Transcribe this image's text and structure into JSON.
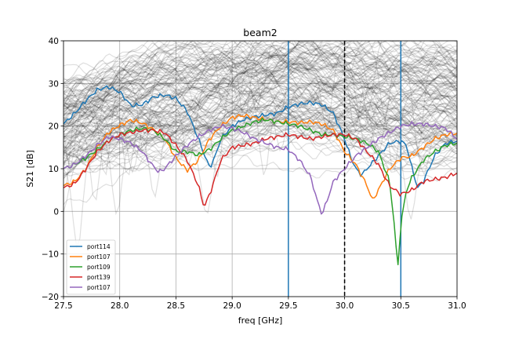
{
  "chart_data": {
    "type": "line",
    "title": "beam2",
    "xlabel": "freq [GHz]",
    "ylabel": "S21 [dB]",
    "xlim": [
      27.5,
      31.0
    ],
    "ylim": [
      -20,
      40
    ],
    "xticks": [
      "27.5",
      "28.0",
      "28.5",
      "29.0",
      "29.5",
      "30.0",
      "30.5",
      "31.0"
    ],
    "yticks": [
      "−20",
      "−10",
      "0",
      "10",
      "20",
      "30",
      "40"
    ],
    "grid": true,
    "legend_position": "lower-left",
    "background_traces": {
      "description_count": 200,
      "color": "#000000",
      "envelope_upper": [
        [
          27.5,
          29
        ],
        [
          28.0,
          34
        ],
        [
          28.5,
          37
        ],
        [
          29.0,
          39
        ],
        [
          29.5,
          40
        ],
        [
          30.0,
          39
        ],
        [
          30.5,
          38
        ],
        [
          31.0,
          37
        ]
      ],
      "envelope_lower": [
        [
          27.5,
          1
        ],
        [
          28.0,
          5
        ],
        [
          28.5,
          3
        ],
        [
          29.0,
          6
        ],
        [
          29.5,
          9
        ],
        [
          30.0,
          5
        ],
        [
          30.5,
          2
        ],
        [
          31.0,
          2
        ]
      ]
    },
    "vertical_lines": [
      {
        "x": 29.5,
        "color": "#1f77b4",
        "style": "solid"
      },
      {
        "x": 30.0,
        "color": "#000000",
        "style": "dashed"
      },
      {
        "x": 30.5,
        "color": "#1f77b4",
        "style": "solid"
      }
    ],
    "series": [
      {
        "name": "port114",
        "color": "#1f77b4",
        "points": [
          [
            27.5,
            20.5
          ],
          [
            27.6,
            23
          ],
          [
            27.7,
            26
          ],
          [
            27.8,
            28.5
          ],
          [
            27.9,
            29.2
          ],
          [
            28.0,
            28
          ],
          [
            28.1,
            24.8
          ],
          [
            28.2,
            25
          ],
          [
            28.3,
            26.8
          ],
          [
            28.4,
            27.3
          ],
          [
            28.5,
            26.5
          ],
          [
            28.6,
            23.5
          ],
          [
            28.7,
            17
          ],
          [
            28.75,
            13.5
          ],
          [
            28.8,
            10.2
          ],
          [
            28.85,
            13
          ],
          [
            28.9,
            17
          ],
          [
            29.0,
            20
          ],
          [
            29.1,
            21.5
          ],
          [
            29.2,
            22.2
          ],
          [
            29.3,
            22.6
          ],
          [
            29.4,
            23
          ],
          [
            29.5,
            24.5
          ],
          [
            29.6,
            25.2
          ],
          [
            29.7,
            25.5
          ],
          [
            29.8,
            25
          ],
          [
            29.9,
            23
          ],
          [
            30.0,
            17
          ],
          [
            30.05,
            13
          ],
          [
            30.1,
            10
          ],
          [
            30.15,
            8.5
          ],
          [
            30.2,
            10
          ],
          [
            30.3,
            13
          ],
          [
            30.4,
            16
          ],
          [
            30.5,
            16.5
          ],
          [
            30.55,
            15.5
          ],
          [
            30.6,
            10
          ],
          [
            30.65,
            5.5
          ],
          [
            30.7,
            7
          ],
          [
            30.8,
            13
          ],
          [
            30.9,
            16
          ],
          [
            31.0,
            16.5
          ]
        ]
      },
      {
        "name": "port107",
        "color": "#ff7f0e",
        "points": [
          [
            27.5,
            6
          ],
          [
            27.6,
            7
          ],
          [
            27.7,
            10
          ],
          [
            27.8,
            15
          ],
          [
            27.9,
            18.5
          ],
          [
            28.0,
            20.2
          ],
          [
            28.1,
            21.4
          ],
          [
            28.2,
            20.7
          ],
          [
            28.3,
            19.2
          ],
          [
            28.4,
            17
          ],
          [
            28.5,
            12.5
          ],
          [
            28.6,
            9.6
          ],
          [
            28.7,
            12
          ],
          [
            28.8,
            17
          ],
          [
            28.9,
            20
          ],
          [
            29.0,
            22
          ],
          [
            29.1,
            22.5
          ],
          [
            29.2,
            22
          ],
          [
            29.3,
            21.5
          ],
          [
            29.4,
            21
          ],
          [
            29.5,
            21
          ],
          [
            29.6,
            20.8
          ],
          [
            29.7,
            21
          ],
          [
            29.8,
            20.5
          ],
          [
            29.9,
            19
          ],
          [
            30.0,
            14
          ],
          [
            30.1,
            11
          ],
          [
            30.2,
            6
          ],
          [
            30.25,
            2.5
          ],
          [
            30.3,
            5
          ],
          [
            30.4,
            10
          ],
          [
            30.5,
            12.5
          ],
          [
            30.6,
            13
          ],
          [
            30.7,
            15
          ],
          [
            30.8,
            17
          ],
          [
            30.9,
            18
          ],
          [
            31.0,
            18.3
          ]
        ]
      },
      {
        "name": "port109",
        "color": "#2ca02c",
        "points": [
          [
            27.5,
            10
          ],
          [
            27.6,
            11
          ],
          [
            27.7,
            12.5
          ],
          [
            27.8,
            14.5
          ],
          [
            27.9,
            16.5
          ],
          [
            28.0,
            18
          ],
          [
            28.1,
            19
          ],
          [
            28.2,
            19.5
          ],
          [
            28.3,
            19
          ],
          [
            28.4,
            17
          ],
          [
            28.5,
            14
          ],
          [
            28.6,
            14
          ],
          [
            28.7,
            13.2
          ],
          [
            28.8,
            14.5
          ],
          [
            28.9,
            17
          ],
          [
            29.0,
            19
          ],
          [
            29.1,
            20
          ],
          [
            29.2,
            21
          ],
          [
            29.3,
            21.5
          ],
          [
            29.4,
            21
          ],
          [
            29.5,
            20.5
          ],
          [
            29.6,
            20
          ],
          [
            29.7,
            19
          ],
          [
            29.8,
            18
          ],
          [
            29.9,
            18
          ],
          [
            30.0,
            17.5
          ],
          [
            30.1,
            17
          ],
          [
            30.2,
            16
          ],
          [
            30.3,
            14
          ],
          [
            30.4,
            7
          ],
          [
            30.45,
            -5
          ],
          [
            30.47,
            -14.5
          ],
          [
            30.5,
            -3
          ],
          [
            30.55,
            5
          ],
          [
            30.6,
            8
          ],
          [
            30.7,
            12
          ],
          [
            30.8,
            14
          ],
          [
            30.9,
            15.5
          ],
          [
            31.0,
            16
          ]
        ]
      },
      {
        "name": "port139",
        "color": "#d62728",
        "points": [
          [
            27.5,
            5.5
          ],
          [
            27.6,
            6.5
          ],
          [
            27.7,
            10
          ],
          [
            27.8,
            14
          ],
          [
            27.9,
            16.5
          ],
          [
            28.0,
            18
          ],
          [
            28.1,
            18.5
          ],
          [
            28.2,
            19
          ],
          [
            28.3,
            19
          ],
          [
            28.4,
            18.5
          ],
          [
            28.5,
            15.5
          ],
          [
            28.6,
            12
          ],
          [
            28.7,
            6
          ],
          [
            28.75,
            1
          ],
          [
            28.8,
            4
          ],
          [
            28.9,
            12
          ],
          [
            29.0,
            15
          ],
          [
            29.1,
            15.5
          ],
          [
            29.2,
            16
          ],
          [
            29.3,
            17
          ],
          [
            29.4,
            17.5
          ],
          [
            29.5,
            18
          ],
          [
            29.6,
            17.5
          ],
          [
            29.7,
            17
          ],
          [
            29.8,
            17.5
          ],
          [
            29.9,
            18
          ],
          [
            30.0,
            18
          ],
          [
            30.1,
            17
          ],
          [
            30.2,
            14
          ],
          [
            30.3,
            11
          ],
          [
            30.4,
            6
          ],
          [
            30.5,
            4
          ],
          [
            30.6,
            5
          ],
          [
            30.7,
            7
          ],
          [
            30.8,
            7.5
          ],
          [
            30.9,
            8
          ],
          [
            31.0,
            9
          ]
        ]
      },
      {
        "name": "port107",
        "color": "#9467bd",
        "points": [
          [
            27.5,
            10
          ],
          [
            27.6,
            11
          ],
          [
            27.7,
            13
          ],
          [
            27.8,
            15.5
          ],
          [
            27.9,
            17.5
          ],
          [
            28.0,
            17
          ],
          [
            28.1,
            16
          ],
          [
            28.2,
            14
          ],
          [
            28.3,
            10.5
          ],
          [
            28.35,
            9.2
          ],
          [
            28.4,
            10
          ],
          [
            28.5,
            13
          ],
          [
            28.6,
            15.5
          ],
          [
            28.7,
            17.5
          ],
          [
            28.8,
            19
          ],
          [
            28.9,
            20
          ],
          [
            29.0,
            19.5
          ],
          [
            29.1,
            18.5
          ],
          [
            29.2,
            17
          ],
          [
            29.3,
            16
          ],
          [
            29.4,
            15
          ],
          [
            29.5,
            14.5
          ],
          [
            29.6,
            12
          ],
          [
            29.7,
            8
          ],
          [
            29.75,
            3
          ],
          [
            29.8,
            -0.8
          ],
          [
            29.85,
            3
          ],
          [
            29.9,
            7
          ],
          [
            30.0,
            10
          ],
          [
            30.1,
            13
          ],
          [
            30.2,
            15
          ],
          [
            30.3,
            17
          ],
          [
            30.4,
            18.5
          ],
          [
            30.5,
            20
          ],
          [
            30.6,
            20.5
          ],
          [
            30.7,
            20.5
          ],
          [
            30.8,
            20
          ],
          [
            30.9,
            19.5
          ],
          [
            31.0,
            17
          ]
        ]
      }
    ]
  }
}
